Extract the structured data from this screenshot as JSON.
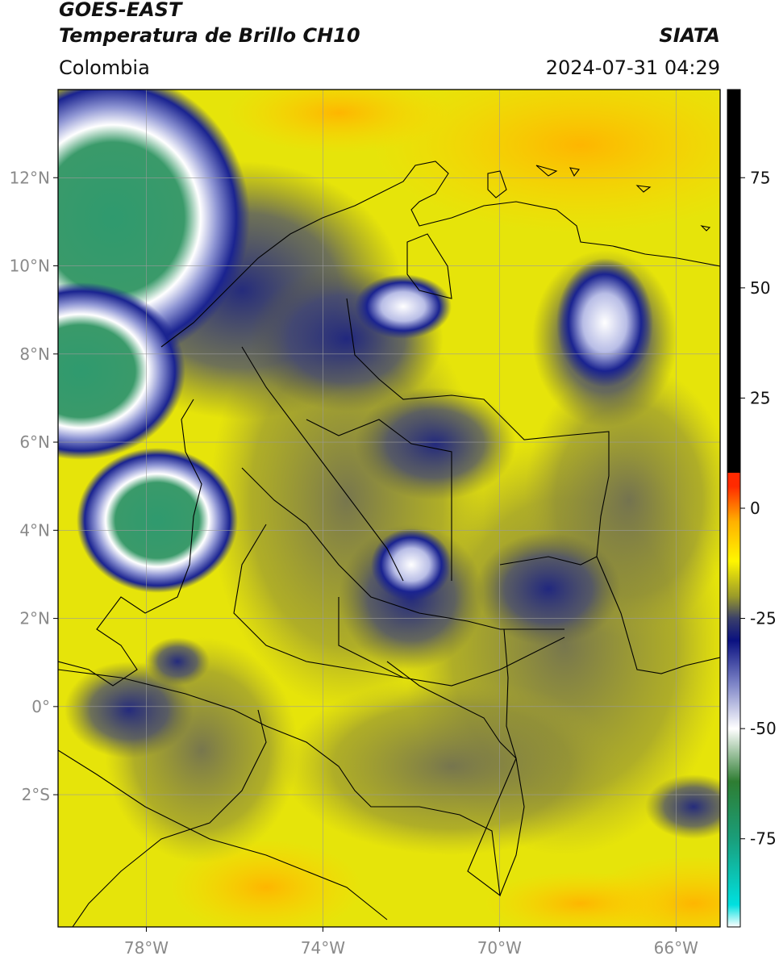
{
  "header": {
    "satellite": "GOES-EAST",
    "product": "Temperatura de Brillo CH10",
    "region": "Colombia",
    "agency": "SIATA",
    "datetime": "2024-07-31 04:29"
  },
  "map": {
    "lon_range": [
      -80,
      -65
    ],
    "lat_range": [
      -5.0,
      14.0
    ],
    "lat_ticks": [
      {
        "value": 12,
        "label": "12°N"
      },
      {
        "value": 10,
        "label": "10°N"
      },
      {
        "value": 8,
        "label": "8°N"
      },
      {
        "value": 6,
        "label": "6°N"
      },
      {
        "value": 4,
        "label": "4°N"
      },
      {
        "value": 2,
        "label": "2°N"
      },
      {
        "value": 0,
        "label": "0°"
      },
      {
        "value": -2,
        "label": "2°S"
      }
    ],
    "lon_ticks": [
      {
        "value": -78,
        "label": "78°W"
      },
      {
        "value": -74,
        "label": "74°W"
      },
      {
        "value": -70,
        "label": "70°W"
      },
      {
        "value": -66,
        "label": "66°W"
      }
    ],
    "gridlines": true
  },
  "colorbar": {
    "range": [
      -95,
      95
    ],
    "ticks": [
      {
        "value": 75,
        "label": "75"
      },
      {
        "value": 50,
        "label": "50"
      },
      {
        "value": 25,
        "label": "25"
      },
      {
        "value": 0,
        "label": "0"
      },
      {
        "value": -25,
        "label": "-25"
      },
      {
        "value": -50,
        "label": "-50"
      },
      {
        "value": -75,
        "label": "-75"
      }
    ],
    "stops": [
      {
        "value": -95,
        "color": "#ffffff"
      },
      {
        "value": -90,
        "color": "#00e0e0"
      },
      {
        "value": -75,
        "color": "#1a9e7a"
      },
      {
        "value": -62,
        "color": "#2e7d32"
      },
      {
        "value": -50,
        "color": "#ffffff"
      },
      {
        "value": -40,
        "color": "#7f86c8"
      },
      {
        "value": -30,
        "color": "#0a1180"
      },
      {
        "value": -25,
        "color": "#3a3f6a"
      },
      {
        "value": -20,
        "color": "#9a9a2a"
      },
      {
        "value": -12,
        "color": "#fff600"
      },
      {
        "value": -3,
        "color": "#ffb000"
      },
      {
        "value": 5,
        "color": "#ff2a00"
      },
      {
        "value": 8,
        "color": "#ff2a00"
      },
      {
        "value": 8.1,
        "color": "#000000"
      },
      {
        "value": 95,
        "color": "#000000"
      }
    ]
  }
}
